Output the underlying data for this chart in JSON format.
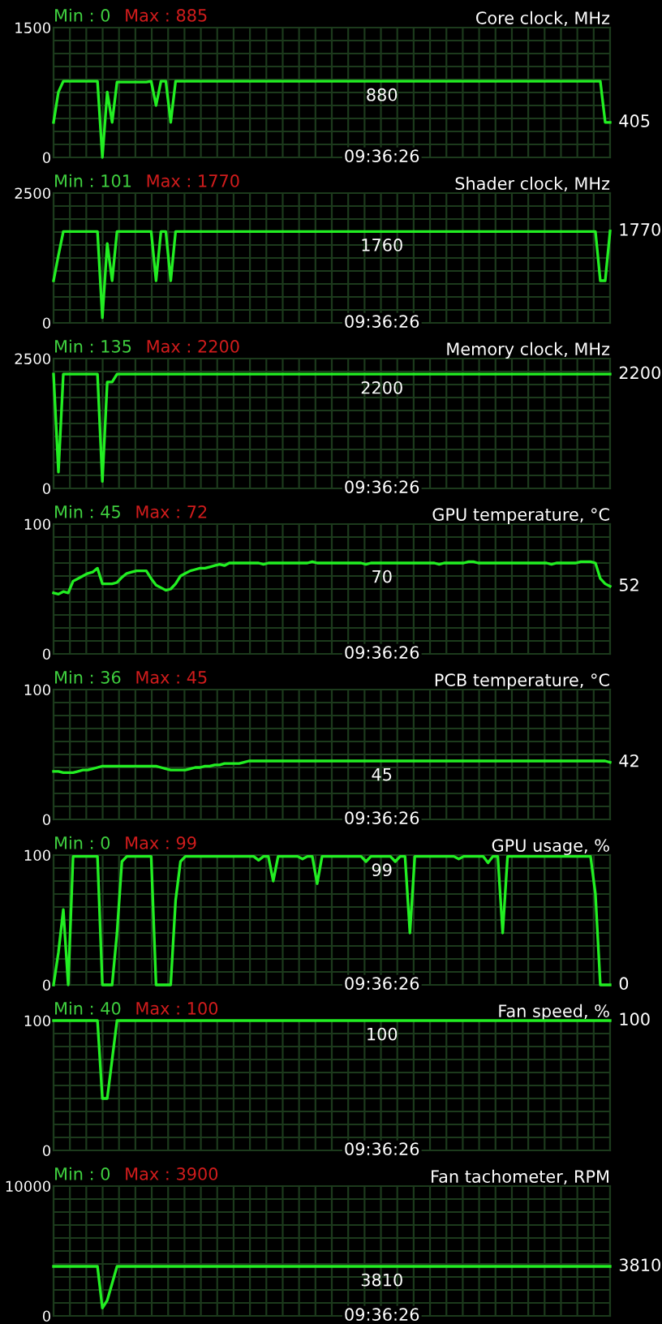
{
  "chart_data": [
    {
      "type": "line",
      "title": "Core clock, MHz",
      "categories": [
        null,
        null,
        null,
        null,
        null,
        null,
        null,
        null,
        null,
        null,
        null,
        null,
        null,
        null,
        null,
        null,
        null,
        null,
        null,
        null,
        null,
        null,
        null,
        null,
        null,
        null,
        null,
        null,
        null,
        null,
        null,
        null,
        null,
        null,
        null,
        null,
        null,
        null,
        null,
        null,
        null,
        null,
        null,
        null,
        null,
        null,
        null,
        null,
        null,
        null,
        null,
        null,
        null,
        null,
        null,
        null,
        null,
        null,
        null,
        null,
        null,
        null,
        null,
        null,
        null,
        null,
        null,
        null,
        null,
        null,
        null,
        null,
        null,
        null,
        null,
        null,
        null,
        null,
        null,
        null,
        null,
        null,
        null,
        null,
        null,
        null,
        null,
        null,
        null,
        null,
        null,
        null,
        null,
        null,
        null,
        null,
        null,
        null,
        null,
        null,
        null,
        null,
        null,
        null,
        null,
        null,
        null,
        null,
        null,
        null,
        null,
        null,
        null,
        null,
        null
      ],
      "series": [
        {
          "color": "#22ee22",
          "values": [
            405,
            756,
            880,
            880,
            880,
            880,
            880,
            880,
            880,
            880,
            0,
            756,
            405,
            870,
            870,
            870,
            870,
            870,
            870,
            870,
            880,
            600,
            880,
            880,
            405,
            880,
            880,
            880,
            880,
            880,
            880,
            880,
            880,
            880,
            880,
            880,
            880,
            880,
            880,
            880,
            880,
            880,
            880,
            880,
            880,
            880,
            880,
            880,
            880,
            880,
            880,
            880,
            880,
            880,
            880,
            880,
            880,
            880,
            880,
            880,
            880,
            880,
            880,
            880,
            880,
            880,
            880,
            880,
            880,
            880,
            880,
            880,
            880,
            880,
            880,
            880,
            880,
            880,
            880,
            880,
            880,
            880,
            880,
            880,
            880,
            880,
            880,
            880,
            880,
            880,
            880,
            880,
            880,
            880,
            880,
            880,
            880,
            880,
            880,
            880,
            880,
            880,
            880,
            880,
            880,
            880,
            880,
            880,
            880,
            880,
            880,
            880,
            880,
            405,
            405
          ]
        }
      ],
      "ylim": [
        0,
        1500
      ],
      "yticks": [
        0,
        1500
      ],
      "grid": true,
      "tick_labels": "y",
      "annotations": [
        "Min : 0",
        "Max : 885",
        "880",
        "405",
        "09:36:26"
      ]
    },
    {
      "type": "line",
      "title": "Shader clock, MHz",
      "categories": [
        null,
        null,
        null,
        null,
        null,
        null,
        null,
        null,
        null,
        null,
        null,
        null,
        null,
        null,
        null,
        null,
        null,
        null,
        null,
        null,
        null,
        null,
        null,
        null,
        null,
        null,
        null,
        null,
        null,
        null,
        null,
        null,
        null,
        null,
        null,
        null,
        null,
        null,
        null,
        null,
        null,
        null,
        null,
        null,
        null,
        null,
        null,
        null,
        null,
        null,
        null,
        null,
        null,
        null,
        null,
        null,
        null,
        null,
        null,
        null,
        null,
        null,
        null,
        null,
        null,
        null,
        null,
        null,
        null,
        null,
        null,
        null,
        null,
        null,
        null,
        null,
        null,
        null,
        null,
        null,
        null,
        null,
        null,
        null,
        null,
        null,
        null,
        null,
        null,
        null,
        null,
        null,
        null,
        null,
        null,
        null,
        null,
        null,
        null,
        null,
        null,
        null,
        null,
        null,
        null,
        null,
        null,
        null,
        null,
        null,
        null,
        null,
        null,
        null,
        null
      ],
      "series": [
        {
          "color": "#22ee22",
          "values": [
            812,
            1300,
            1760,
            1760,
            1760,
            1760,
            1760,
            1760,
            1760,
            1760,
            101,
            1530,
            812,
            1760,
            1760,
            1760,
            1760,
            1760,
            1760,
            1760,
            1760,
            812,
            1760,
            1760,
            812,
            1760,
            1760,
            1760,
            1760,
            1760,
            1760,
            1760,
            1760,
            1760,
            1760,
            1760,
            1760,
            1760,
            1760,
            1760,
            1760,
            1760,
            1760,
            1760,
            1760,
            1760,
            1760,
            1760,
            1760,
            1760,
            1760,
            1760,
            1760,
            1760,
            1760,
            1760,
            1760,
            1760,
            1760,
            1760,
            1760,
            1760,
            1760,
            1760,
            1760,
            1760,
            1760,
            1760,
            1760,
            1760,
            1760,
            1760,
            1760,
            1760,
            1760,
            1760,
            1760,
            1760,
            1760,
            1760,
            1760,
            1760,
            1760,
            1760,
            1760,
            1760,
            1760,
            1760,
            1760,
            1760,
            1760,
            1760,
            1760,
            1760,
            1760,
            1760,
            1760,
            1760,
            1760,
            1760,
            1760,
            1760,
            1760,
            1760,
            1760,
            1760,
            1760,
            1760,
            1760,
            1760,
            1760,
            1760,
            812,
            812,
            1770
          ]
        }
      ],
      "ylim": [
        0,
        2500
      ],
      "yticks": [
        0,
        2500
      ],
      "grid": true,
      "tick_labels": "y",
      "annotations": [
        "Min : 101",
        "Max : 1770",
        "1760",
        "1770",
        "09:36:26"
      ]
    },
    {
      "type": "line",
      "title": "Memory clock, MHz",
      "categories": [
        null,
        null,
        null,
        null,
        null,
        null,
        null,
        null,
        null,
        null,
        null,
        null,
        null,
        null,
        null,
        null,
        null,
        null,
        null,
        null,
        null,
        null,
        null,
        null,
        null,
        null,
        null,
        null,
        null,
        null,
        null,
        null,
        null,
        null,
        null,
        null,
        null,
        null,
        null,
        null,
        null,
        null,
        null,
        null,
        null,
        null,
        null,
        null,
        null,
        null,
        null,
        null,
        null,
        null,
        null,
        null,
        null,
        null,
        null,
        null,
        null,
        null,
        null,
        null,
        null,
        null,
        null,
        null,
        null,
        null,
        null,
        null,
        null,
        null,
        null,
        null,
        null,
        null,
        null,
        null,
        null,
        null,
        null,
        null,
        null,
        null,
        null,
        null,
        null,
        null,
        null,
        null,
        null,
        null,
        null,
        null,
        null,
        null,
        null,
        null,
        null,
        null,
        null,
        null,
        null,
        null,
        null,
        null,
        null,
        null,
        null,
        null,
        null,
        null,
        null
      ],
      "series": [
        {
          "color": "#22ee22",
          "values": [
            2200,
            315,
            2200,
            2200,
            2200,
            2200,
            2200,
            2200,
            2200,
            2200,
            135,
            2048,
            2048,
            2200,
            2200,
            2200,
            2200,
            2200,
            2200,
            2200,
            2200,
            2200,
            2200,
            2200,
            2200,
            2200,
            2200,
            2200,
            2200,
            2200,
            2200,
            2200,
            2200,
            2200,
            2200,
            2200,
            2200,
            2200,
            2200,
            2200,
            2200,
            2200,
            2200,
            2200,
            2200,
            2200,
            2200,
            2200,
            2200,
            2200,
            2200,
            2200,
            2200,
            2200,
            2200,
            2200,
            2200,
            2200,
            2200,
            2200,
            2200,
            2200,
            2200,
            2200,
            2200,
            2200,
            2200,
            2200,
            2200,
            2200,
            2200,
            2200,
            2200,
            2200,
            2200,
            2200,
            2200,
            2200,
            2200,
            2200,
            2200,
            2200,
            2200,
            2200,
            2200,
            2200,
            2200,
            2200,
            2200,
            2200,
            2200,
            2200,
            2200,
            2200,
            2200,
            2200,
            2200,
            2200,
            2200,
            2200,
            2200,
            2200,
            2200,
            2200,
            2200,
            2200,
            2200,
            2200,
            2200,
            2200,
            2200,
            2200,
            2200,
            2200,
            2200
          ]
        }
      ],
      "ylim": [
        0,
        2500
      ],
      "yticks": [
        0,
        2500
      ],
      "grid": true,
      "tick_labels": "y",
      "annotations": [
        "Min : 135",
        "Max : 2200",
        "2200",
        "2200",
        "09:36:26"
      ]
    },
    {
      "type": "line",
      "title": "GPU temperature, °C",
      "categories": [
        null,
        null,
        null,
        null,
        null,
        null,
        null,
        null,
        null,
        null,
        null,
        null,
        null,
        null,
        null,
        null,
        null,
        null,
        null,
        null,
        null,
        null,
        null,
        null,
        null,
        null,
        null,
        null,
        null,
        null,
        null,
        null,
        null,
        null,
        null,
        null,
        null,
        null,
        null,
        null,
        null,
        null,
        null,
        null,
        null,
        null,
        null,
        null,
        null,
        null,
        null,
        null,
        null,
        null,
        null,
        null,
        null,
        null,
        null,
        null,
        null,
        null,
        null,
        null,
        null,
        null,
        null,
        null,
        null,
        null,
        null,
        null,
        null,
        null,
        null,
        null,
        null,
        null,
        null,
        null,
        null,
        null,
        null,
        null,
        null,
        null,
        null,
        null,
        null,
        null,
        null,
        null,
        null,
        null,
        null,
        null,
        null,
        null,
        null,
        null,
        null,
        null,
        null,
        null,
        null,
        null,
        null,
        null,
        null,
        null,
        null,
        null,
        null,
        null,
        null
      ],
      "series": [
        {
          "color": "#22ee22",
          "values": [
            47,
            46,
            48,
            47,
            56,
            58,
            60,
            62,
            63,
            66,
            54,
            54,
            54,
            55,
            59,
            62,
            63,
            64,
            64,
            64,
            58,
            53,
            51,
            49,
            50,
            54,
            60,
            62,
            64,
            65,
            66,
            66,
            67,
            68,
            69,
            68,
            70,
            70,
            70,
            70,
            70,
            70,
            70,
            69,
            70,
            70,
            70,
            70,
            70,
            70,
            70,
            70,
            70,
            71,
            70,
            70,
            70,
            70,
            70,
            70,
            70,
            70,
            70,
            70,
            69,
            70,
            70,
            70,
            70,
            70,
            70,
            70,
            70,
            70,
            70,
            70,
            70,
            70,
            70,
            69,
            70,
            70,
            70,
            70,
            70,
            71,
            71,
            70,
            70,
            70,
            70,
            70,
            70,
            70,
            70,
            70,
            70,
            70,
            70,
            70,
            70,
            70,
            69,
            70,
            70,
            70,
            70,
            70,
            71,
            71,
            71,
            70,
            58,
            54,
            52
          ]
        }
      ],
      "ylim": [
        0,
        100
      ],
      "yticks": [
        0,
        100
      ],
      "grid": true,
      "tick_labels": "y",
      "annotations": [
        "Min : 45",
        "Max : 72",
        "70",
        "52",
        "09:36:26"
      ]
    },
    {
      "type": "line",
      "title": "PCB temperature, °C",
      "categories": [
        null,
        null,
        null,
        null,
        null,
        null,
        null,
        null,
        null,
        null,
        null,
        null,
        null,
        null,
        null,
        null,
        null,
        null,
        null,
        null,
        null,
        null,
        null,
        null,
        null,
        null,
        null,
        null,
        null,
        null,
        null,
        null,
        null,
        null,
        null,
        null,
        null,
        null,
        null,
        null,
        null,
        null,
        null,
        null,
        null,
        null,
        null,
        null,
        null,
        null,
        null,
        null,
        null,
        null,
        null,
        null,
        null,
        null,
        null,
        null,
        null,
        null,
        null,
        null,
        null,
        null,
        null,
        null,
        null,
        null,
        null,
        null,
        null,
        null,
        null,
        null,
        null,
        null,
        null,
        null,
        null,
        null,
        null,
        null,
        null,
        null,
        null,
        null,
        null,
        null,
        null,
        null,
        null,
        null,
        null,
        null,
        null,
        null,
        null,
        null,
        null,
        null,
        null,
        null,
        null,
        null,
        null,
        null,
        null,
        null,
        null,
        null,
        null,
        null,
        null
      ],
      "series": [
        {
          "color": "#22ee22",
          "values": [
            37,
            37,
            36,
            36,
            36,
            37,
            38,
            38,
            39,
            40,
            41,
            41,
            41,
            41,
            41,
            41,
            41,
            41,
            41,
            41,
            41,
            41,
            40,
            39,
            38,
            38,
            38,
            38,
            39,
            40,
            40,
            41,
            41,
            42,
            42,
            43,
            43,
            43,
            43,
            44,
            45,
            45,
            45,
            45,
            45,
            45,
            45,
            45,
            45,
            45,
            45,
            45,
            45,
            45,
            45,
            45,
            45,
            45,
            45,
            45,
            45,
            45,
            45,
            45,
            45,
            45,
            45,
            45,
            45,
            45,
            45,
            45,
            45,
            45,
            45,
            45,
            45,
            45,
            45,
            45,
            45,
            45,
            45,
            45,
            45,
            45,
            45,
            45,
            45,
            45,
            45,
            45,
            45,
            45,
            45,
            45,
            45,
            45,
            45,
            45,
            45,
            45,
            45,
            45,
            45,
            45,
            45,
            45,
            45,
            45,
            45,
            45,
            45,
            45,
            44
          ]
        }
      ],
      "ylim": [
        0,
        100
      ],
      "yticks": [
        0,
        100
      ],
      "grid": true,
      "tick_labels": "y",
      "annotations": [
        "Min : 36",
        "Max : 45",
        "45",
        "42",
        "09:36:26"
      ]
    },
    {
      "type": "line",
      "title": "GPU usage, %",
      "categories": [
        null,
        null,
        null,
        null,
        null,
        null,
        null,
        null,
        null,
        null,
        null,
        null,
        null,
        null,
        null,
        null,
        null,
        null,
        null,
        null,
        null,
        null,
        null,
        null,
        null,
        null,
        null,
        null,
        null,
        null,
        null,
        null,
        null,
        null,
        null,
        null,
        null,
        null,
        null,
        null,
        null,
        null,
        null,
        null,
        null,
        null,
        null,
        null,
        null,
        null,
        null,
        null,
        null,
        null,
        null,
        null,
        null,
        null,
        null,
        null,
        null,
        null,
        null,
        null,
        null,
        null,
        null,
        null,
        null,
        null,
        null,
        null,
        null,
        null,
        null,
        null,
        null,
        null,
        null,
        null,
        null,
        null,
        null,
        null,
        null,
        null,
        null,
        null,
        null,
        null,
        null,
        null,
        null,
        null,
        null,
        null,
        null,
        null,
        null,
        null,
        null,
        null,
        null,
        null,
        null,
        null,
        null,
        null,
        null,
        null,
        null,
        null,
        null,
        null,
        null
      ],
      "series": [
        {
          "color": "#22ee22",
          "values": [
            0,
            25,
            58,
            0,
            99,
            99,
            99,
            99,
            99,
            99,
            0,
            0,
            0,
            40,
            95,
            99,
            99,
            99,
            99,
            99,
            99,
            0,
            0,
            0,
            0,
            65,
            95,
            99,
            99,
            99,
            99,
            99,
            99,
            99,
            99,
            99,
            99,
            99,
            99,
            99,
            99,
            99,
            96,
            99,
            99,
            80,
            99,
            99,
            99,
            99,
            99,
            97,
            99,
            99,
            78,
            99,
            99,
            99,
            99,
            99,
            99,
            99,
            99,
            99,
            95,
            99,
            99,
            99,
            99,
            99,
            95,
            99,
            99,
            40,
            99,
            99,
            99,
            99,
            99,
            99,
            99,
            99,
            99,
            97,
            99,
            99,
            99,
            99,
            99,
            94,
            99,
            99,
            40,
            99,
            99,
            99,
            99,
            99,
            99,
            99,
            99,
            99,
            99,
            99,
            99,
            99,
            99,
            99,
            99,
            99,
            99,
            70,
            0,
            0,
            0
          ]
        }
      ],
      "ylim": [
        0,
        100
      ],
      "yticks": [
        0,
        100
      ],
      "grid": true,
      "tick_labels": "y",
      "annotations": [
        "Min : 0",
        "Max : 99",
        "99",
        "0",
        "09:36:26"
      ]
    },
    {
      "type": "line",
      "title": "Fan speed, %",
      "categories": [
        null,
        null,
        null,
        null,
        null,
        null,
        null,
        null,
        null,
        null,
        null,
        null,
        null,
        null,
        null,
        null,
        null,
        null,
        null,
        null,
        null,
        null,
        null,
        null,
        null,
        null,
        null,
        null,
        null,
        null,
        null,
        null,
        null,
        null,
        null,
        null,
        null,
        null,
        null,
        null,
        null,
        null,
        null,
        null,
        null,
        null,
        null,
        null,
        null,
        null,
        null,
        null,
        null,
        null,
        null,
        null,
        null,
        null,
        null,
        null,
        null,
        null,
        null,
        null,
        null,
        null,
        null,
        null,
        null,
        null,
        null,
        null,
        null,
        null,
        null,
        null,
        null,
        null,
        null,
        null,
        null,
        null,
        null,
        null,
        null,
        null,
        null,
        null,
        null,
        null,
        null,
        null,
        null,
        null,
        null,
        null,
        null,
        null,
        null,
        null,
        null,
        null,
        null,
        null,
        null,
        null,
        null,
        null,
        null,
        null,
        null,
        null,
        null,
        null,
        null
      ],
      "series": [
        {
          "color": "#22ee22",
          "values": [
            100,
            100,
            100,
            100,
            100,
            100,
            100,
            100,
            100,
            100,
            40,
            40,
            70,
            100,
            100,
            100,
            100,
            100,
            100,
            100,
            100,
            100,
            100,
            100,
            100,
            100,
            100,
            100,
            100,
            100,
            100,
            100,
            100,
            100,
            100,
            100,
            100,
            100,
            100,
            100,
            100,
            100,
            100,
            100,
            100,
            100,
            100,
            100,
            100,
            100,
            100,
            100,
            100,
            100,
            100,
            100,
            100,
            100,
            100,
            100,
            100,
            100,
            100,
            100,
            100,
            100,
            100,
            100,
            100,
            100,
            100,
            100,
            100,
            100,
            100,
            100,
            100,
            100,
            100,
            100,
            100,
            100,
            100,
            100,
            100,
            100,
            100,
            100,
            100,
            100,
            100,
            100,
            100,
            100,
            100,
            100,
            100,
            100,
            100,
            100,
            100,
            100,
            100,
            100,
            100,
            100,
            100,
            100,
            100,
            100,
            100,
            100,
            100,
            100,
            100
          ]
        }
      ],
      "ylim": [
        0,
        100
      ],
      "yticks": [
        0,
        100
      ],
      "grid": true,
      "tick_labels": "y",
      "annotations": [
        "Min : 40",
        "Max : 100",
        "100",
        "100",
        "09:36:26"
      ]
    },
    {
      "type": "line",
      "title": "Fan tachometer, RPM",
      "categories": [
        null,
        null,
        null,
        null,
        null,
        null,
        null,
        null,
        null,
        null,
        null,
        null,
        null,
        null,
        null,
        null,
        null,
        null,
        null,
        null,
        null,
        null,
        null,
        null,
        null,
        null,
        null,
        null,
        null,
        null,
        null,
        null,
        null,
        null,
        null,
        null,
        null,
        null,
        null,
        null,
        null,
        null,
        null,
        null,
        null,
        null,
        null,
        null,
        null,
        null,
        null,
        null,
        null,
        null,
        null,
        null,
        null,
        null,
        null,
        null,
        null,
        null,
        null,
        null,
        null,
        null,
        null,
        null,
        null,
        null,
        null,
        null,
        null,
        null,
        null,
        null,
        null,
        null,
        null,
        null,
        null,
        null,
        null,
        null,
        null,
        null,
        null,
        null,
        null,
        null,
        null,
        null,
        null,
        null,
        null,
        null,
        null,
        null,
        null,
        null,
        null,
        null,
        null,
        null,
        null,
        null,
        null,
        null,
        null,
        null,
        null,
        null,
        null,
        null,
        null
      ],
      "series": [
        {
          "color": "#22ee22",
          "values": [
            3810,
            3810,
            3810,
            3810,
            3810,
            3810,
            3810,
            3810,
            3810,
            3810,
            600,
            1200,
            2500,
            3810,
            3810,
            3810,
            3810,
            3810,
            3810,
            3810,
            3810,
            3810,
            3810,
            3810,
            3810,
            3810,
            3810,
            3810,
            3810,
            3810,
            3810,
            3810,
            3810,
            3810,
            3810,
            3810,
            3810,
            3810,
            3810,
            3810,
            3810,
            3810,
            3810,
            3810,
            3810,
            3810,
            3810,
            3810,
            3810,
            3810,
            3810,
            3810,
            3810,
            3810,
            3810,
            3810,
            3810,
            3810,
            3810,
            3810,
            3810,
            3810,
            3810,
            3810,
            3810,
            3810,
            3810,
            3810,
            3810,
            3810,
            3810,
            3810,
            3810,
            3810,
            3810,
            3810,
            3810,
            3810,
            3810,
            3810,
            3810,
            3810,
            3810,
            3810,
            3810,
            3810,
            3810,
            3810,
            3810,
            3810,
            3810,
            3810,
            3810,
            3810,
            3810,
            3810,
            3810,
            3810,
            3810,
            3810,
            3810,
            3810,
            3810,
            3810,
            3810,
            3810,
            3810,
            3810,
            3810,
            3810,
            3810,
            3810,
            3810,
            3810,
            3810
          ]
        }
      ],
      "ylim": [
        0,
        10000
      ],
      "yticks": [
        0,
        10000
      ],
      "grid": true,
      "tick_labels": "y",
      "annotations": [
        "Min : 0",
        "Max : 3900",
        "3810",
        "3810",
        "09:36:26"
      ]
    }
  ]
}
